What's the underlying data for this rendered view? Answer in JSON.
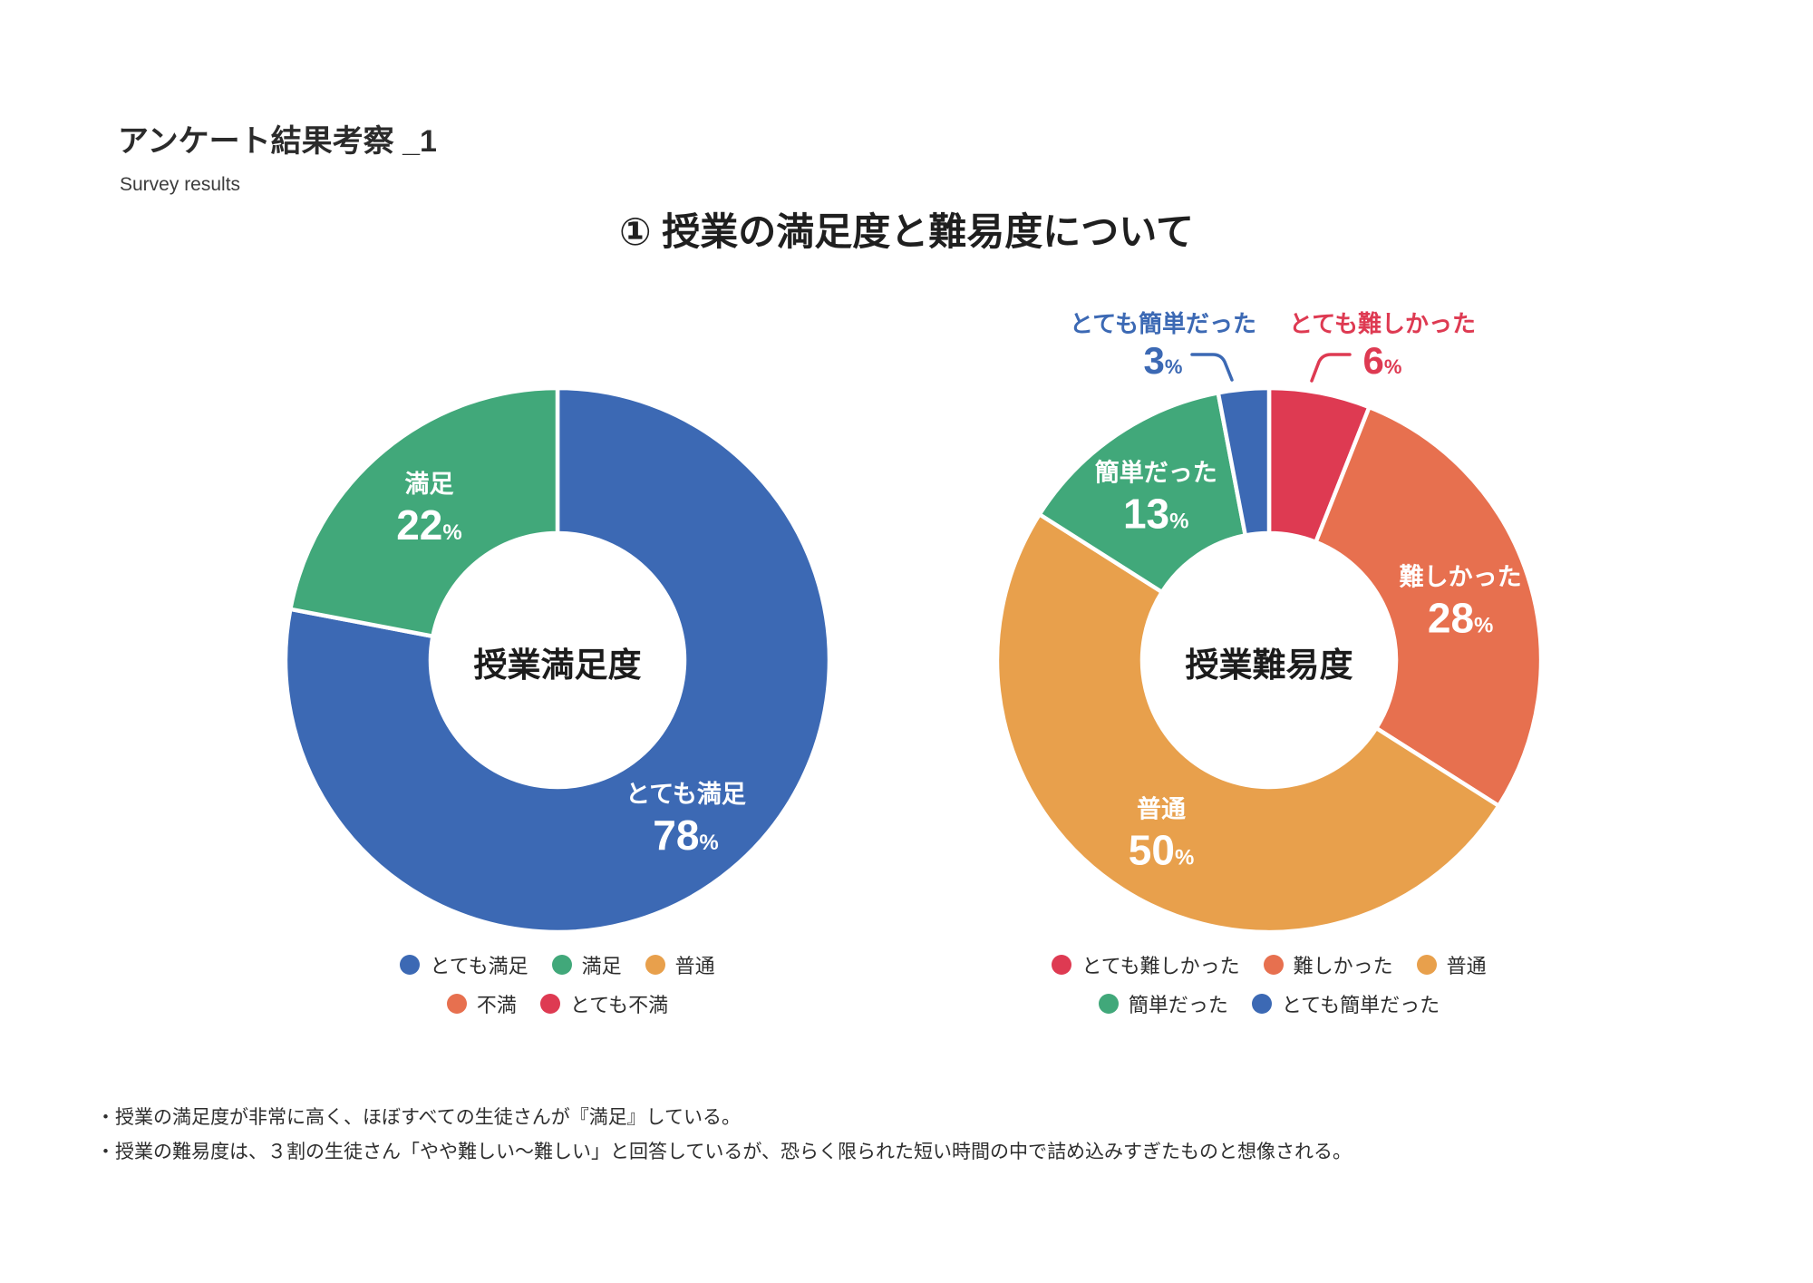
{
  "header": {
    "title": "アンケート結果考察 _1",
    "subtitle": "Survey results"
  },
  "section_heading": "① 授業の満足度と難易度について",
  "notes": [
    "・授業の満足度が非常に高く、ほぼすべての生徒さんが『満足』している。",
    "・授業の難易度は、３割の生徒さん「やや難しい〜難しい」と回答しているが、恐らく限られた短い時間の中で詰め込みすぎたものと想像される。"
  ],
  "colors": {
    "blue": "#3C69B4",
    "green": "#41A87A",
    "orange": "#E8A04C",
    "coral": "#E7704F",
    "red": "#DE3A52"
  },
  "chart_data": [
    {
      "type": "pie",
      "subtype": "donut",
      "center_label": "授業満足度",
      "unit": "%",
      "start_angle": 0,
      "direction": "clockwise",
      "slices": [
        {
          "label": "とても満足",
          "value": 78,
          "color": "#3C69B4"
        },
        {
          "label": "満足",
          "value": 22,
          "color": "#41A87A"
        }
      ],
      "legend": [
        {
          "label": "とても満足",
          "color": "#3C69B4"
        },
        {
          "label": "満足",
          "color": "#41A87A"
        },
        {
          "label": "普通",
          "color": "#E8A04C"
        },
        {
          "label": "不満",
          "color": "#E7704F"
        },
        {
          "label": "とても不満",
          "color": "#DE3A52"
        }
      ]
    },
    {
      "type": "pie",
      "subtype": "donut",
      "center_label": "授業難易度",
      "unit": "%",
      "start_angle": 0,
      "direction": "clockwise",
      "slices": [
        {
          "label": "とても難しかった",
          "value": 6,
          "color": "#DE3A52",
          "callout": true
        },
        {
          "label": "難しかった",
          "value": 28,
          "color": "#E7704F"
        },
        {
          "label": "普通",
          "value": 50,
          "color": "#E8A04C"
        },
        {
          "label": "簡単だった",
          "value": 13,
          "color": "#41A87A"
        },
        {
          "label": "とても簡単だった",
          "value": 3,
          "color": "#3C69B4",
          "callout": true
        }
      ],
      "legend": [
        {
          "label": "とても難しかった",
          "color": "#DE3A52"
        },
        {
          "label": "難しかった",
          "color": "#E7704F"
        },
        {
          "label": "普通",
          "color": "#E8A04C"
        },
        {
          "label": "簡単だった",
          "color": "#41A87A"
        },
        {
          "label": "とても簡単だった",
          "color": "#3C69B4"
        }
      ]
    }
  ]
}
